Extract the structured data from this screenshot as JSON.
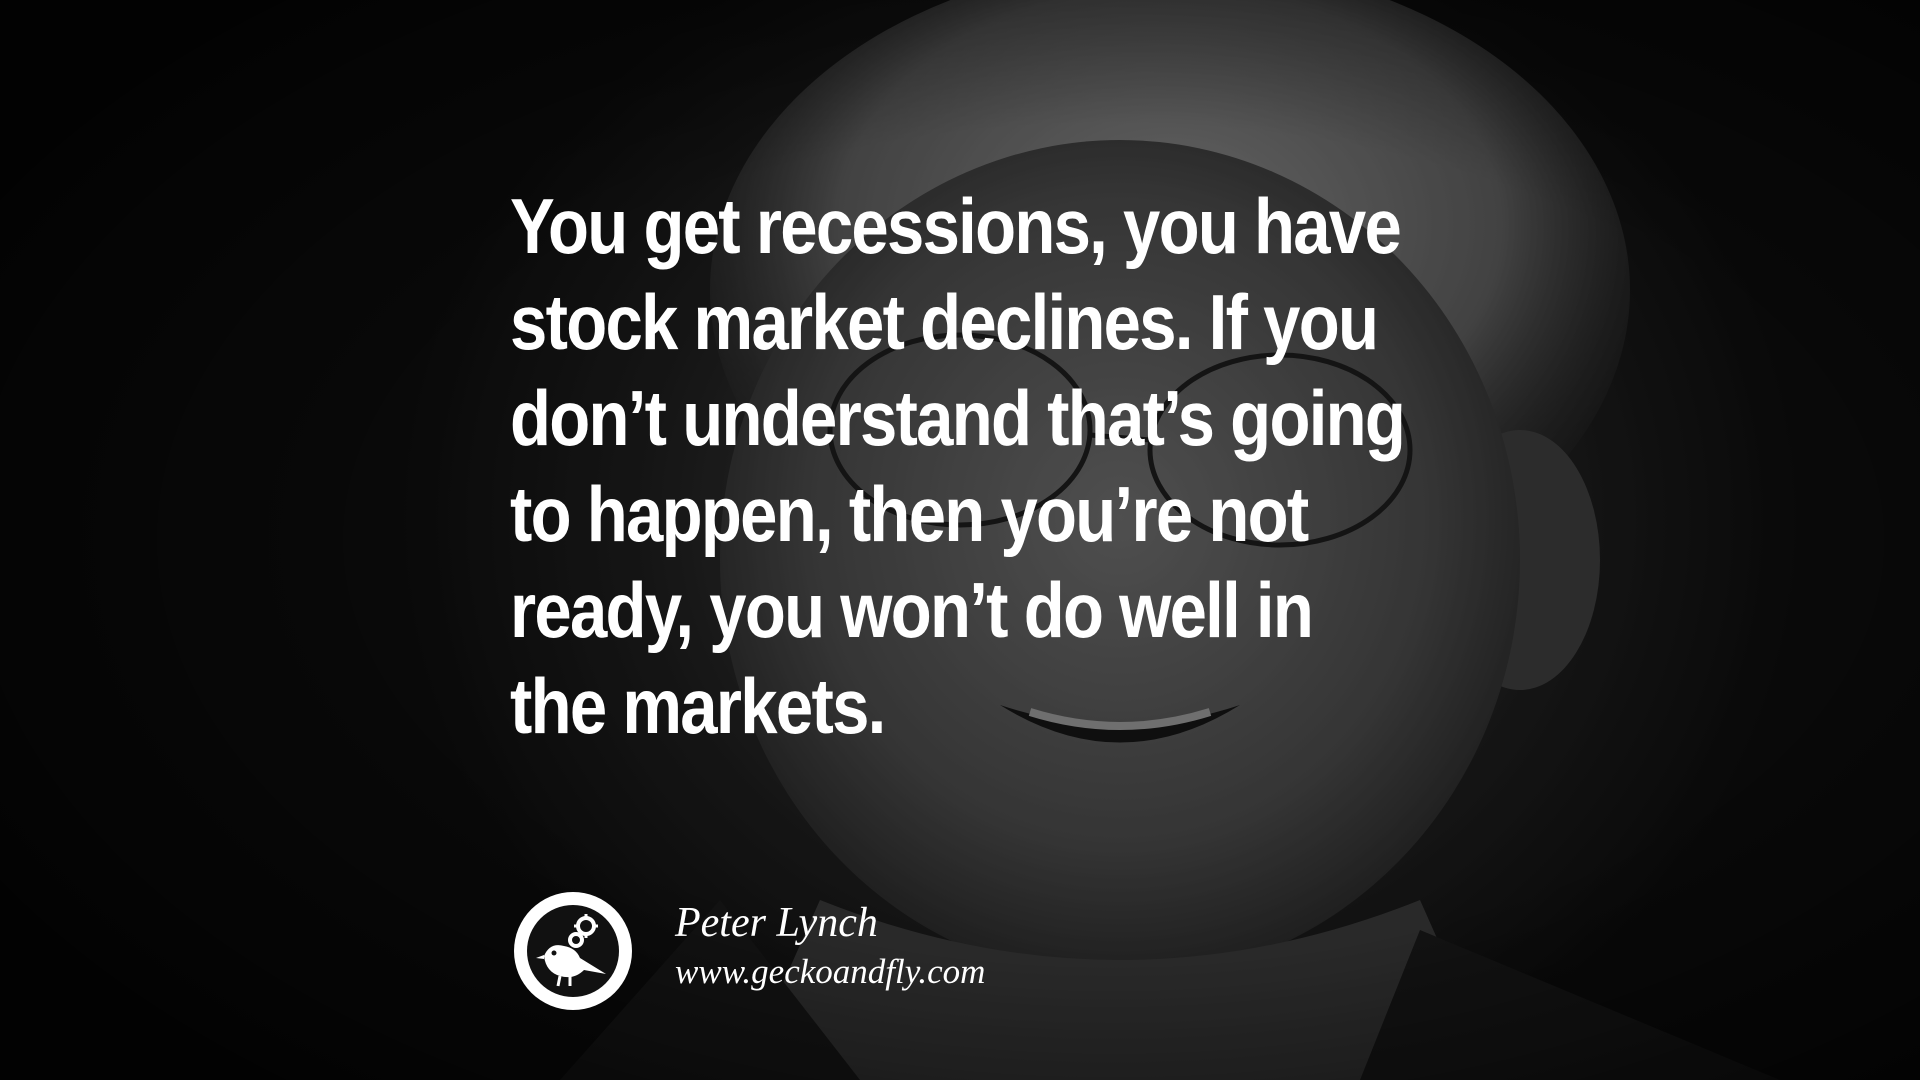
{
  "quote": {
    "lines": [
      "You get recessions, you have",
      "stock market declines. If you",
      "don’t understand that’s going",
      "to happen, then you’re not",
      "ready, you won’t do well in",
      "the markets."
    ]
  },
  "attribution": {
    "author": "Peter Lynch",
    "website": "www.geckoandfly.com"
  },
  "logo": {
    "icon": "bird-with-gears-icon"
  },
  "colors": {
    "text": "#ffffff",
    "background": "#0a0a0a"
  }
}
